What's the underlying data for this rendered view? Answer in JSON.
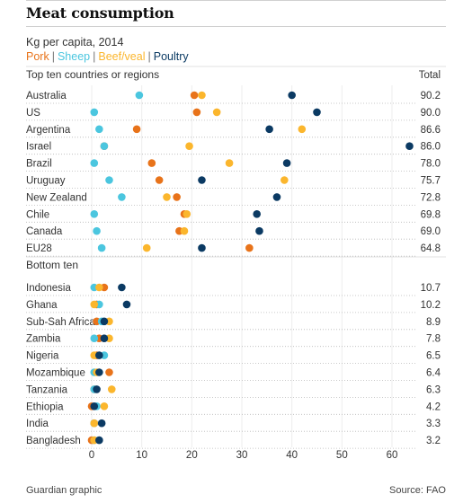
{
  "title": "Meat consumption",
  "subtitle": "Kg per capita, 2014",
  "legend": [
    {
      "label": "Pork",
      "color": "#e8731a"
    },
    {
      "label": "Sheep",
      "color": "#4bc6df"
    },
    {
      "label": "Beef/veal",
      "color": "#fbb62d"
    },
    {
      "label": "Poultry",
      "color": "#0b3a63"
    }
  ],
  "footer": {
    "credit": "Guardian graphic",
    "source": "Source: FAO"
  },
  "colors": {
    "text": "#333333",
    "rule": "#d9d9d9",
    "dotted": "#b8b8b8"
  },
  "chart_data": {
    "type": "scatter",
    "title": "Meat consumption",
    "subtitle": "Kg per capita, 2014",
    "total_label": "Total",
    "xlim": [
      0,
      60
    ],
    "xticks": [
      0,
      10,
      20,
      30,
      40,
      50,
      60
    ],
    "series_order": [
      "Pork",
      "Sheep",
      "Beef/veal",
      "Poultry"
    ],
    "groups": [
      {
        "heading": "Top ten countries or regions",
        "rows": [
          {
            "name": "Australia",
            "total": "90.2",
            "Pork": 20.5,
            "Sheep": 9.5,
            "Beef/veal": 22.0,
            "Poultry": 40.0
          },
          {
            "name": "US",
            "total": "90.0",
            "Pork": 21.0,
            "Sheep": 0.5,
            "Beef/veal": 25.0,
            "Poultry": 45.0
          },
          {
            "name": "Argentina",
            "total": "86.6",
            "Pork": 9.0,
            "Sheep": 1.5,
            "Beef/veal": 42.0,
            "Poultry": 35.5
          },
          {
            "name": "Israel",
            "total": "86.0",
            "Pork": 2.5,
            "Sheep": 2.5,
            "Beef/veal": 19.5,
            "Poultry": 63.5
          },
          {
            "name": "Brazil",
            "total": "78.0",
            "Pork": 12.0,
            "Sheep": 0.5,
            "Beef/veal": 27.5,
            "Poultry": 39.0
          },
          {
            "name": "Uruguay",
            "total": "75.7",
            "Pork": 13.5,
            "Sheep": 3.5,
            "Beef/veal": 38.5,
            "Poultry": 22.0
          },
          {
            "name": "New Zealand",
            "total": "72.8",
            "Pork": 17.0,
            "Sheep": 6.0,
            "Beef/veal": 15.0,
            "Poultry": 37.0
          },
          {
            "name": "Chile",
            "total": "69.8",
            "Pork": 18.5,
            "Sheep": 0.5,
            "Beef/veal": 19.0,
            "Poultry": 33.0
          },
          {
            "name": "Canada",
            "total": "69.0",
            "Pork": 17.5,
            "Sheep": 1.0,
            "Beef/veal": 18.5,
            "Poultry": 33.5
          },
          {
            "name": "EU28",
            "total": "64.8",
            "Pork": 31.5,
            "Sheep": 2.0,
            "Beef/veal": 11.0,
            "Poultry": 22.0
          }
        ]
      },
      {
        "heading": "Bottom ten",
        "rows": [
          {
            "name": "Indonesia",
            "total": "10.7",
            "Pork": 2.5,
            "Sheep": 0.5,
            "Beef/veal": 1.5,
            "Poultry": 6.0
          },
          {
            "name": "Ghana",
            "total": "10.2",
            "Pork": 1.0,
            "Sheep": 1.5,
            "Beef/veal": 0.5,
            "Poultry": 7.0
          },
          {
            "name": "Sub-Sah Africa",
            "total": "8.9",
            "Pork": 1.0,
            "Sheep": 2.0,
            "Beef/veal": 3.5,
            "Poultry": 2.5
          },
          {
            "name": "Zambia",
            "total": "7.8",
            "Pork": 1.5,
            "Sheep": 0.5,
            "Beef/veal": 3.5,
            "Poultry": 2.5
          },
          {
            "name": "Nigeria",
            "total": "6.5",
            "Pork": 1.0,
            "Sheep": 2.5,
            "Beef/veal": 0.5,
            "Poultry": 1.5
          },
          {
            "name": "Mozambique",
            "total": "6.4",
            "Pork": 3.5,
            "Sheep": 0.5,
            "Beef/veal": 1.0,
            "Poultry": 1.5
          },
          {
            "name": "Tanzania",
            "total": "6.3",
            "Pork": 0.5,
            "Sheep": 0.5,
            "Beef/veal": 4.0,
            "Poultry": 1.0
          },
          {
            "name": "Ethiopia",
            "total": "4.2",
            "Pork": 0.0,
            "Sheep": 1.0,
            "Beef/veal": 2.5,
            "Poultry": 0.5
          },
          {
            "name": "India",
            "total": "3.3",
            "Pork": 0.5,
            "Sheep": 0.5,
            "Beef/veal": 0.5,
            "Poultry": 2.0
          },
          {
            "name": "Bangladesh",
            "total": "3.2",
            "Pork": 0.0,
            "Sheep": 0.5,
            "Beef/veal": 0.5,
            "Poultry": 1.5
          }
        ]
      }
    ]
  }
}
